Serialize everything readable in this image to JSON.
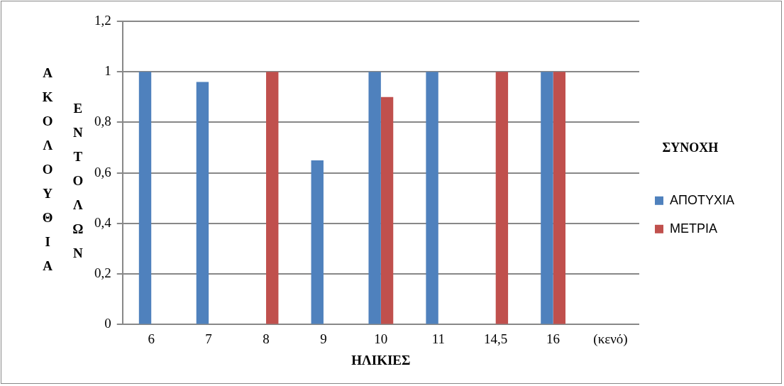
{
  "chart_data": {
    "type": "bar",
    "xlabel": "ΗΛΙΚΙΕΣ",
    "ylabel": "ΑΚΟΛΟΥΘΙΑ ΕΝΤΟΛΩΝ",
    "legend_title": "ΣΥΝΟΧΗ",
    "categories": [
      "6",
      "7",
      "8",
      "9",
      "10",
      "11",
      "14,5",
      "16",
      "(κενό)"
    ],
    "series": [
      {
        "name": "ΑΠΟΤΥΧΙΑ",
        "color": "#4f81bd",
        "values": [
          1,
          0.96,
          null,
          0.65,
          1,
          1,
          null,
          1,
          null
        ]
      },
      {
        "name": "ΜΕΤΡΙΑ",
        "color": "#c0504d",
        "values": [
          null,
          null,
          1,
          null,
          0.9,
          null,
          1,
          1,
          null
        ]
      }
    ],
    "ylim": [
      0,
      1.2
    ],
    "yticks": [
      0,
      {
        "value": 0.2,
        "label": "0,2"
      },
      {
        "value": 0.4,
        "label": "0,4"
      },
      {
        "value": 0.6,
        "label": "0,6"
      },
      {
        "value": 0.8,
        "label": "0,8"
      },
      1,
      {
        "value": 1.2,
        "label": "1,2"
      }
    ],
    "grid": "y",
    "legend": "right"
  }
}
